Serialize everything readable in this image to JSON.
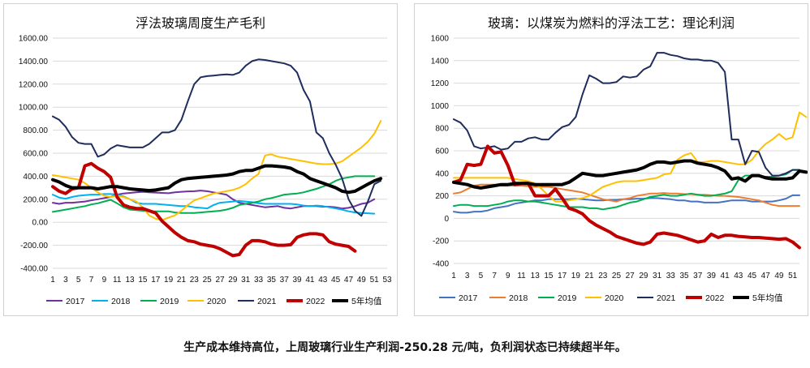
{
  "caption": "生产成本维持高位，上周玻璃行业生产利润-250.28 元/吨，负利润状态已持续超半年。",
  "chart_data": [
    {
      "type": "line",
      "title": "浮法玻璃周度生产毛利",
      "ylim": [
        -400,
        1600
      ],
      "y_ticks": [
        "-400.00",
        "-200.00",
        "0.00",
        "200.00",
        "400.00",
        "600.00",
        "800.00",
        "1000.00",
        "1200.00",
        "1400.00",
        "1600.00"
      ],
      "x_ticks": [
        "1",
        "3",
        "5",
        "7",
        "9",
        "11",
        "13",
        "15",
        "17",
        "19",
        "21",
        "23",
        "25",
        "27",
        "29",
        "31",
        "33",
        "35",
        "37",
        "39",
        "41",
        "43",
        "45",
        "47",
        "49",
        "51",
        "53"
      ],
      "x_range": [
        1,
        53
      ],
      "grid": true,
      "legend": "bottom",
      "series": [
        {
          "name": "2017",
          "color": "#7030a0",
          "width": 2,
          "values": [
            170,
            160,
            170,
            170,
            175,
            180,
            190,
            200,
            210,
            220,
            240,
            250,
            255,
            260,
            265,
            260,
            258,
            255,
            252,
            260,
            265,
            268,
            270,
            275,
            270,
            260,
            250,
            240,
            200,
            170,
            160,
            150,
            140,
            130,
            135,
            140,
            125,
            120,
            130,
            140,
            140,
            140,
            135,
            135,
            130,
            120,
            125,
            140,
            160,
            170,
            200
          ]
        },
        {
          "name": "2018",
          "color": "#00b0f0",
          "width": 2,
          "values": [
            240,
            215,
            205,
            220,
            230,
            235,
            240,
            240,
            245,
            245,
            240,
            225,
            200,
            170,
            160,
            160,
            160,
            155,
            150,
            145,
            140,
            140,
            130,
            125,
            120,
            150,
            170,
            175,
            180,
            185,
            180,
            175,
            165,
            160,
            160,
            160,
            160,
            160,
            155,
            145,
            140,
            145,
            140,
            130,
            120,
            110,
            95,
            85,
            80,
            78,
            75
          ]
        },
        {
          "name": "2019",
          "color": "#00b050",
          "width": 2,
          "values": [
            90,
            100,
            110,
            120,
            130,
            140,
            155,
            165,
            180,
            195,
            165,
            130,
            110,
            105,
            100,
            95,
            95,
            95,
            95,
            85,
            80,
            80,
            80,
            85,
            90,
            95,
            100,
            110,
            125,
            150,
            160,
            170,
            180,
            200,
            210,
            225,
            240,
            245,
            250,
            260,
            275,
            290,
            310,
            330,
            360,
            380,
            390,
            400,
            400,
            400,
            400
          ]
        },
        {
          "name": "2020",
          "color": "#ffc000",
          "width": 2,
          "values": [
            410,
            400,
            390,
            380,
            370,
            340,
            300,
            260,
            230,
            220,
            230,
            220,
            200,
            180,
            130,
            60,
            30,
            20,
            40,
            60,
            100,
            150,
            190,
            210,
            230,
            250,
            260,
            270,
            280,
            300,
            330,
            380,
            420,
            580,
            590,
            570,
            560,
            550,
            540,
            530,
            520,
            510,
            505,
            505,
            510,
            530,
            570,
            610,
            650,
            700,
            770,
            880
          ]
        },
        {
          "name": "2021",
          "color": "#1f2d5c",
          "width": 2,
          "values": [
            920,
            890,
            830,
            740,
            690,
            680,
            680,
            570,
            590,
            640,
            670,
            660,
            650,
            650,
            650,
            680,
            730,
            780,
            780,
            800,
            890,
            1050,
            1200,
            1260,
            1270,
            1275,
            1280,
            1285,
            1280,
            1300,
            1360,
            1400,
            1415,
            1410,
            1400,
            1390,
            1380,
            1360,
            1300,
            1150,
            1050,
            780,
            730,
            600,
            500,
            380,
            200,
            100,
            55,
            180,
            330,
            360
          ]
        },
        {
          "name": "2022",
          "color": "#c00000",
          "width": 4,
          "values": [
            310,
            270,
            250,
            290,
            300,
            490,
            510,
            470,
            440,
            390,
            220,
            150,
            130,
            120,
            120,
            100,
            80,
            10,
            -40,
            -90,
            -130,
            -160,
            -170,
            -190,
            -200,
            -210,
            -230,
            -260,
            -290,
            -280,
            -200,
            -160,
            -160,
            -170,
            -190,
            -200,
            -200,
            -195,
            -130,
            -110,
            -100,
            -100,
            -110,
            -170,
            -190,
            -200,
            -210,
            -250
          ]
        },
        {
          "name": "5年均值",
          "color": "#000000",
          "width": 4,
          "values": [
            370,
            350,
            320,
            300,
            300,
            300,
            300,
            290,
            300,
            310,
            310,
            300,
            290,
            285,
            280,
            275,
            280,
            290,
            300,
            340,
            370,
            380,
            385,
            390,
            395,
            400,
            405,
            410,
            420,
            440,
            450,
            450,
            470,
            490,
            490,
            485,
            480,
            470,
            440,
            420,
            380,
            360,
            340,
            320,
            300,
            270,
            260,
            270,
            300,
            330,
            360,
            380
          ]
        }
      ]
    },
    {
      "type": "line",
      "title": "玻璃：以煤炭为燃料的浮法工艺：理论利润",
      "ylim": [
        -400,
        1600
      ],
      "y_ticks": [
        "-400",
        "-200",
        "0",
        "200",
        "400",
        "600",
        "800",
        "1000",
        "1200",
        "1400",
        "1600"
      ],
      "x_ticks": [
        "1",
        "3",
        "5",
        "7",
        "9",
        "11",
        "13",
        "15",
        "17",
        "19",
        "21",
        "23",
        "25",
        "27",
        "29",
        "31",
        "33",
        "35",
        "37",
        "39",
        "41",
        "43",
        "45",
        "47",
        "49",
        "51"
      ],
      "x_range": [
        1,
        52
      ],
      "grid": true,
      "legend": "bottom",
      "series": [
        {
          "name": "2017",
          "color": "#4472c4",
          "width": 2,
          "values": [
            60,
            50,
            50,
            60,
            60,
            70,
            90,
            100,
            110,
            130,
            140,
            150,
            160,
            160,
            170,
            170,
            170,
            170,
            175,
            170,
            165,
            160,
            160,
            165,
            165,
            170,
            170,
            175,
            175,
            180,
            180,
            175,
            170,
            160,
            160,
            150,
            150,
            140,
            140,
            140,
            150,
            160,
            160,
            160,
            150,
            150,
            150,
            150,
            160,
            175,
            205,
            205
          ]
        },
        {
          "name": "2018",
          "color": "#ed7d31",
          "width": 2,
          "values": [
            220,
            230,
            260,
            290,
            300,
            300,
            300,
            290,
            290,
            290,
            290,
            285,
            280,
            280,
            280,
            270,
            260,
            250,
            240,
            230,
            210,
            190,
            170,
            160,
            150,
            170,
            180,
            200,
            210,
            220,
            220,
            225,
            220,
            220,
            215,
            215,
            210,
            210,
            205,
            200,
            200,
            195,
            190,
            180,
            170,
            160,
            140,
            120,
            110,
            110,
            110,
            110
          ]
        },
        {
          "name": "2019",
          "color": "#00b050",
          "width": 2,
          "values": [
            110,
            120,
            120,
            110,
            110,
            110,
            120,
            130,
            150,
            160,
            160,
            150,
            150,
            140,
            130,
            120,
            110,
            100,
            100,
            100,
            90,
            90,
            80,
            90,
            100,
            120,
            140,
            150,
            170,
            190,
            200,
            210,
            200,
            200,
            210,
            220,
            210,
            200,
            200,
            210,
            220,
            240,
            340,
            380,
            380,
            380,
            370,
            370,
            380,
            390,
            430,
            430
          ]
        },
        {
          "name": "2020",
          "color": "#ffc000",
          "width": 2,
          "values": [
            360,
            360,
            360,
            360,
            360,
            360,
            360,
            360,
            360,
            350,
            340,
            330,
            310,
            260,
            200,
            150,
            150,
            160,
            170,
            180,
            200,
            240,
            280,
            300,
            320,
            330,
            330,
            330,
            340,
            350,
            360,
            390,
            400,
            520,
            560,
            580,
            500,
            500,
            510,
            510,
            500,
            490,
            480,
            480,
            520,
            600,
            660,
            700,
            750,
            700,
            720,
            940,
            900
          ]
        },
        {
          "name": "2021",
          "color": "#1f2d5c",
          "width": 2,
          "values": [
            880,
            850,
            780,
            640,
            620,
            630,
            640,
            610,
            620,
            680,
            680,
            710,
            720,
            700,
            700,
            760,
            810,
            830,
            900,
            1100,
            1270,
            1240,
            1200,
            1200,
            1210,
            1260,
            1250,
            1260,
            1320,
            1350,
            1470,
            1470,
            1450,
            1440,
            1420,
            1410,
            1410,
            1400,
            1400,
            1380,
            1300,
            700,
            700,
            480,
            600,
            590,
            450,
            380,
            380,
            400,
            430,
            430
          ]
        },
        {
          "name": "2022",
          "color": "#c00000",
          "width": 4,
          "values": [
            320,
            340,
            480,
            470,
            480,
            640,
            580,
            590,
            470,
            300,
            310,
            310,
            200,
            200,
            200,
            260,
            180,
            90,
            70,
            40,
            -20,
            -60,
            -90,
            -120,
            -160,
            -180,
            -200,
            -220,
            -230,
            -210,
            -140,
            -130,
            -140,
            -150,
            -170,
            -190,
            -210,
            -200,
            -140,
            -170,
            -150,
            -150,
            -160,
            -165,
            -170,
            -170,
            -175,
            -180,
            -185,
            -180,
            -210,
            -260
          ]
        },
        {
          "name": "5年均值",
          "color": "#000000",
          "width": 4,
          "values": [
            320,
            310,
            300,
            280,
            270,
            280,
            290,
            300,
            300,
            310,
            310,
            310,
            300,
            300,
            300,
            300,
            300,
            320,
            360,
            400,
            390,
            380,
            380,
            390,
            400,
            410,
            420,
            430,
            450,
            480,
            500,
            500,
            490,
            500,
            510,
            510,
            490,
            480,
            470,
            450,
            420,
            350,
            360,
            330,
            380,
            380,
            360,
            350,
            350,
            350,
            360,
            420,
            410
          ]
        }
      ]
    }
  ]
}
